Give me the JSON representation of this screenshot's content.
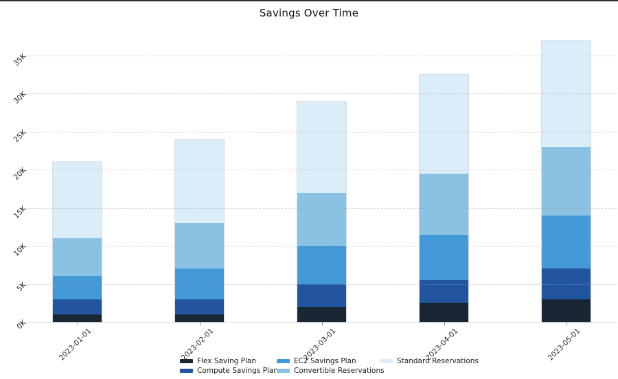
{
  "title": "Savings Over Time",
  "chart_data": {
    "type": "bar",
    "stacked": true,
    "title": "Savings Over Time",
    "categories": [
      "2023-01-01",
      "2023-02-01",
      "2023-03-01",
      "2023-04-01",
      "2023-05-01"
    ],
    "series": [
      {
        "name": "Flex Saving Plan",
        "color": "#1a2634",
        "values": [
          1000,
          1000,
          2000,
          2500,
          3000
        ]
      },
      {
        "name": "Compute Savings Plan",
        "color": "#2155a0",
        "values": [
          2000,
          2000,
          3000,
          3000,
          4000
        ]
      },
      {
        "name": "EC2 Savings Plan",
        "color": "#4399d8",
        "values": [
          3000,
          4000,
          5000,
          6000,
          7000
        ]
      },
      {
        "name": "Convertible Reservations",
        "color": "#8ac2e3",
        "values": [
          5000,
          6000,
          7000,
          8000,
          9000
        ]
      },
      {
        "name": "Standard Reservations",
        "color": "#dcedfa",
        "values": [
          10000,
          11000,
          12000,
          13000,
          14000
        ]
      }
    ],
    "stack_totals": [
      21000,
      24000,
      29000,
      32500,
      37000
    ],
    "y_ticks": [
      {
        "value": 0,
        "label": "0K"
      },
      {
        "value": 5000,
        "label": "5K"
      },
      {
        "value": 10000,
        "label": "10K"
      },
      {
        "value": 15000,
        "label": "15K"
      },
      {
        "value": 20000,
        "label": "20K"
      },
      {
        "value": 25000,
        "label": "25K"
      },
      {
        "value": 30000,
        "label": "30K"
      },
      {
        "value": 35000,
        "label": "35K"
      }
    ],
    "ylim": [
      0,
      38000
    ],
    "xlabel": "",
    "ylabel": "",
    "grid": "horizontal-dotted",
    "tick_rotation_deg": 45,
    "legend_position": "bottom",
    "legend_columns": 3,
    "background_color": "#ffffff",
    "gridline_color": "#a0a0a0"
  }
}
